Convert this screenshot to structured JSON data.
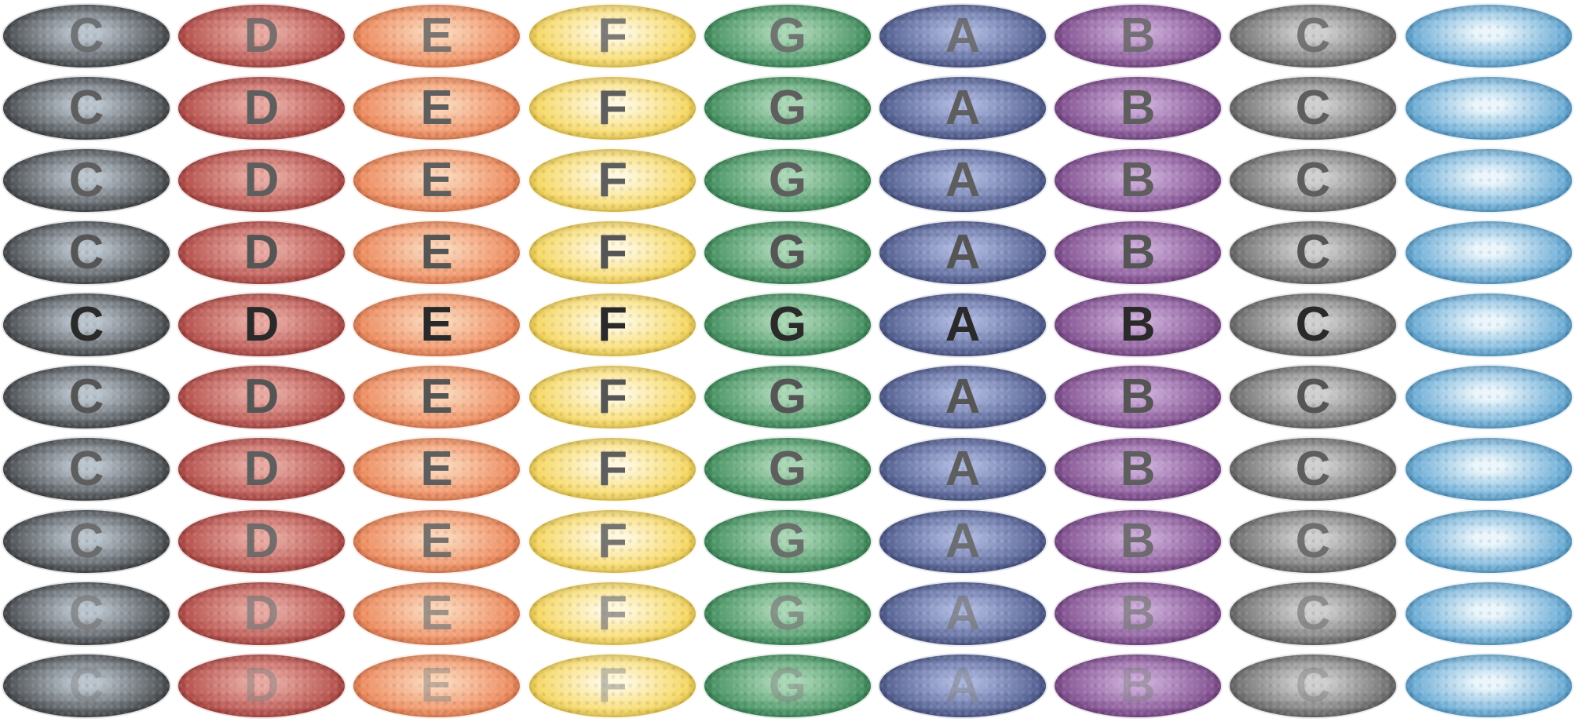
{
  "columns": [
    {
      "letter": "C",
      "edge": "#101010",
      "center": "#b9c3cc"
    },
    {
      "letter": "D",
      "edge": "#9b1e1c",
      "center": "#e8a8a0"
    },
    {
      "letter": "E",
      "edge": "#e8602a",
      "center": "#fbd3b5"
    },
    {
      "letter": "F",
      "edge": "#f2c415",
      "center": "#fff8dc"
    },
    {
      "letter": "G",
      "edge": "#0d6b33",
      "center": "#a8d6b4"
    },
    {
      "letter": "A",
      "edge": "#243168",
      "center": "#a9b4dd"
    },
    {
      "letter": "B",
      "edge": "#5a1f6a",
      "center": "#c9a8d6"
    },
    {
      "letter": "C",
      "edge": "#3a3a3a",
      "center": "#cfcfcf"
    },
    {
      "letter": "",
      "edge": "#1b7fc0",
      "center": "#eaf6fc"
    }
  ],
  "rows": [
    {
      "letter_color": "#666666",
      "letter_opacity": 0.85
    },
    {
      "letter_color": "#5e5e5e",
      "letter_opacity": 1.0
    },
    {
      "letter_color": "#5e5e5e",
      "letter_opacity": 1.0
    },
    {
      "letter_color": "#555555",
      "letter_opacity": 1.0
    },
    {
      "letter_color": "#2a2a2a",
      "letter_opacity": 1.0
    },
    {
      "letter_color": "#555555",
      "letter_opacity": 1.0
    },
    {
      "letter_color": "#5e5e5e",
      "letter_opacity": 1.0
    },
    {
      "letter_color": "#666666",
      "letter_opacity": 0.9
    },
    {
      "letter_color": "#777777",
      "letter_opacity": 0.7
    },
    {
      "letter_color": "#7a7a7a",
      "letter_opacity": 0.45
    }
  ]
}
